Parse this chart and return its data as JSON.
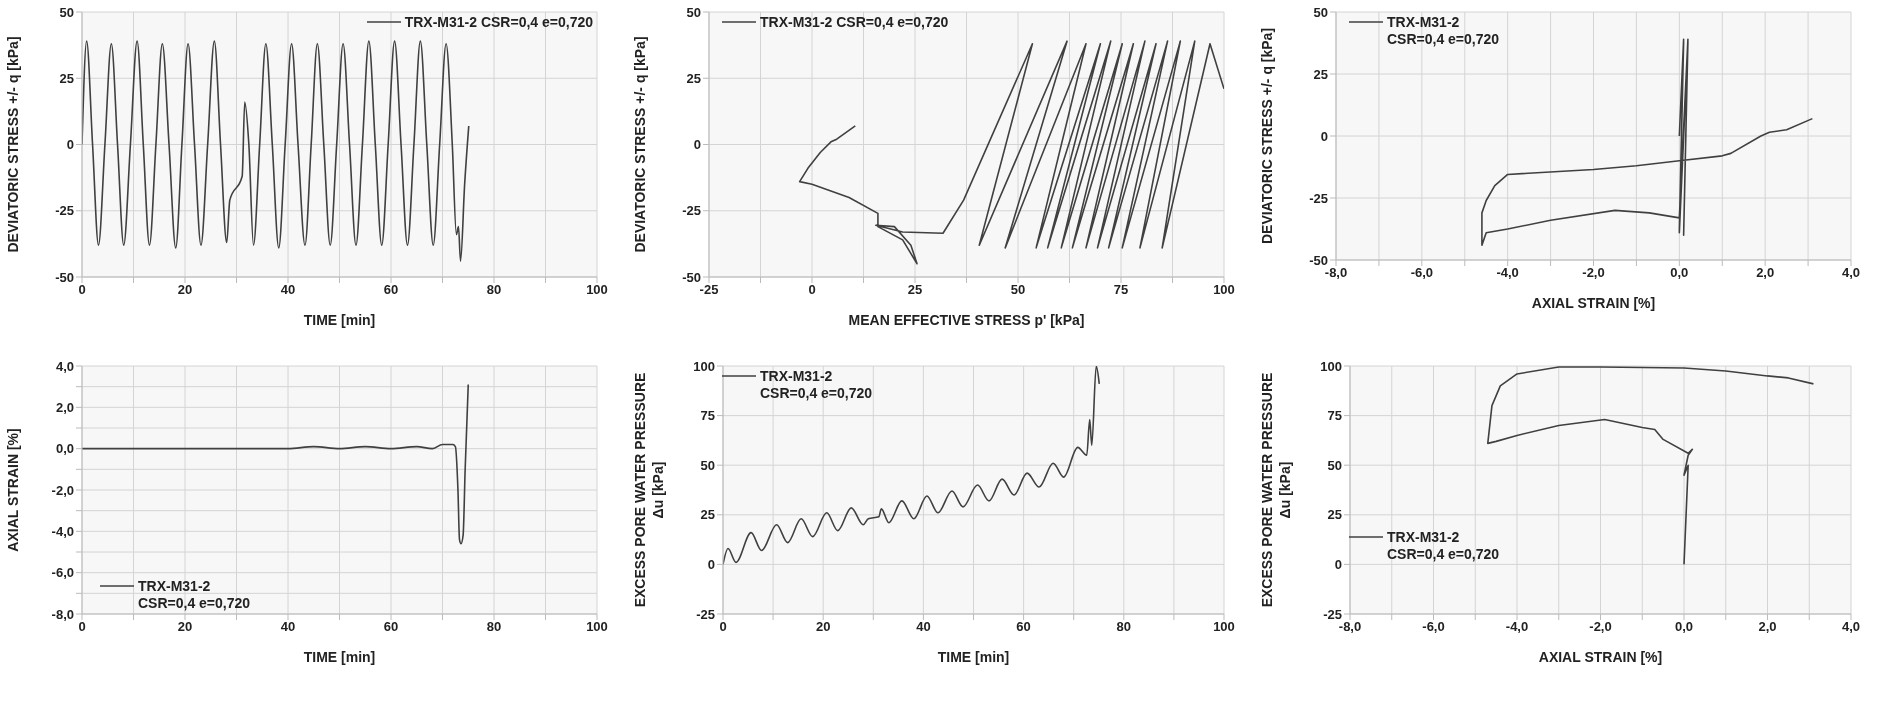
{
  "chart_data": [
    {
      "type": "line",
      "xlabel": "TIME [min]",
      "ylabel": "DEVIATORIC STRESS +/- q [kPa]",
      "xlim": [
        0,
        100
      ],
      "ylim": [
        -50,
        50
      ],
      "xticks": [
        0,
        {
          "value": 10,
          "label": null
        },
        20,
        {
          "value": 30,
          "label": null
        },
        40,
        {
          "value": 50,
          "label": null
        },
        60,
        {
          "value": 70,
          "label": null
        },
        80,
        {
          "value": 90,
          "label": null
        },
        100
      ],
      "yticks": [
        -50,
        -25,
        0,
        25,
        50
      ],
      "grid": true,
      "legend": "top right",
      "series": [
        {
          "name": "TRX-M31-2 CSR=0,4 e=0,720",
          "color": "#404040",
          "x": [
            0,
            0.9,
            2.05,
            3.2,
            4.45,
            5.7,
            6.9,
            8.1,
            9.4,
            10.7,
            11.9,
            13.1,
            14.35,
            15.6,
            16.9,
            18.2,
            19.4,
            20.6,
            21.85,
            23.1,
            24.4,
            25.7,
            26.9,
            28.1,
            28.7,
            31.1,
            31.6,
            32.4,
            33.3,
            34.5,
            35.7,
            36.95,
            38.2,
            39.45,
            40.7,
            41.95,
            43.3,
            44.5,
            45.7,
            46.95,
            48.2,
            49.45,
            50.7,
            51.95,
            53.2,
            54.45,
            55.7,
            56.95,
            58.2,
            59.45,
            60.7,
            61.95,
            63.2,
            64.45,
            65.7,
            66.95,
            68.2,
            69.45,
            70.7,
            71.9,
            72.7,
            73.1,
            73.5,
            74.3,
            75.1
          ],
          "values": [
            0,
            39,
            0,
            -38,
            0,
            38,
            0,
            -38,
            0,
            39,
            0,
            -38,
            0,
            38,
            0,
            -39,
            0,
            38,
            0,
            -38,
            0,
            39,
            0,
            -37,
            -21,
            -12,
            16,
            0,
            -38,
            0,
            38,
            0,
            -39,
            0,
            38,
            0,
            -38,
            0,
            38,
            0,
            -38,
            0,
            38,
            0,
            -38,
            0,
            39,
            0,
            -38,
            0,
            39,
            0,
            -38,
            0,
            39,
            0,
            -38,
            0,
            38,
            0,
            -34,
            -31,
            -44,
            -15,
            7
          ]
        }
      ]
    },
    {
      "type": "line",
      "xlabel": "MEAN EFFECTIVE STRESS p' [kPa]",
      "ylabel": "DEVIATORIC STRESS +/- q [kPa]",
      "xlim": [
        -25,
        100
      ],
      "ylim": [
        -50,
        50
      ],
      "xticks": [
        -25,
        {
          "value": -12.5,
          "label": null
        },
        0,
        {
          "value": 12.5,
          "label": null
        },
        25,
        {
          "value": 37.5,
          "label": null
        },
        50,
        {
          "value": 62.5,
          "label": null
        },
        75,
        {
          "value": 87.5,
          "label": null
        },
        100
      ],
      "yticks": [
        -50,
        -25,
        0,
        25,
        50
      ],
      "grid": true,
      "legend": "top left",
      "series": [
        {
          "name": "TRX-M31-2 CSR=0,4 e=0,720",
          "color": "#404040",
          "x": [
            100,
            96.6,
            85,
            92.9,
            79.6,
            89.4,
            75.3,
            86.3,
            72,
            83.5,
            69.3,
            80.8,
            66.5,
            78,
            63.2,
            75.3,
            60.5,
            72.5,
            57.2,
            70,
            54.4,
            66.5,
            46.9,
            61.9,
            40.6,
            53.5,
            36.8,
            31.8,
            22,
            15.5,
            20,
            24,
            25.5,
            22,
            16,
            16,
            9,
            0,
            -3,
            -1,
            2,
            4.6,
            6,
            10.5
          ],
          "values": [
            21,
            38,
            -39,
            39,
            -39,
            39,
            -39,
            39,
            -39,
            38,
            -39,
            39,
            -39,
            38,
            -39,
            38,
            -39,
            39,
            -39,
            38,
            -39,
            38,
            -39,
            39,
            -38,
            38,
            -21,
            -33.5,
            -33,
            -30.5,
            -31,
            -38,
            -45,
            -36,
            -31,
            -26,
            -20,
            -15,
            -14,
            -9,
            -3,
            1,
            2,
            7
          ]
        }
      ]
    },
    {
      "type": "line",
      "xlabel": "AXIAL STRAIN [%]",
      "ylabel": "DEVIATORIC STRESS +/- q [kPa]",
      "xlim": [
        -8,
        4
      ],
      "ylim": [
        -50,
        50
      ],
      "xticks": [
        {
          "value": -8,
          "label": "-8,0"
        },
        {
          "value": -7,
          "label": null
        },
        {
          "value": -6,
          "label": "-6,0"
        },
        {
          "value": -5,
          "label": null
        },
        {
          "value": -4,
          "label": "-4,0"
        },
        {
          "value": -3,
          "label": null
        },
        {
          "value": -2,
          "label": "-2,0"
        },
        {
          "value": -1,
          "label": null
        },
        {
          "value": 0,
          "label": "0,0"
        },
        {
          "value": 1,
          "label": null
        },
        {
          "value": 2,
          "label": "2,0"
        },
        {
          "value": 3,
          "label": null
        },
        {
          "value": 4,
          "label": "4,0"
        }
      ],
      "yticks": [
        -50,
        -25,
        0,
        25,
        50
      ],
      "grid": true,
      "legend": "top left",
      "series": [
        {
          "name": "TRX-M31-2\nCSR=0,4 e=0,720",
          "color": "#404040",
          "x": [
            0,
            0.1,
            0,
            0.1,
            0,
            0.2,
            0.1,
            0.2,
            0,
            -0.7,
            -1.5,
            -3,
            -4,
            -4.5,
            -4.6,
            -4.6,
            -4.5,
            -4.3,
            -4,
            -2,
            -1,
            0,
            1,
            1.2,
            1.9,
            2.1,
            2.5,
            3.1
          ],
          "values": [
            0,
            39,
            -38,
            38,
            -39,
            38,
            -40,
            39,
            -33,
            -31,
            -30,
            -34,
            -37.5,
            -39,
            -44,
            -31,
            -26,
            -20,
            -15.5,
            -13.5,
            -12,
            -10,
            -8,
            -7,
            0,
            1.5,
            2.5,
            7
          ]
        }
      ]
    },
    {
      "type": "line",
      "xlabel": "TIME [min]",
      "ylabel": "AXIAL STRAIN [%]",
      "xlim": [
        0,
        100
      ],
      "ylim": [
        -8,
        4
      ],
      "xticks": [
        0,
        {
          "value": 10,
          "label": null
        },
        20,
        {
          "value": 30,
          "label": null
        },
        40,
        {
          "value": 50,
          "label": null
        },
        60,
        {
          "value": 70,
          "label": null
        },
        80,
        {
          "value": 90,
          "label": null
        },
        100
      ],
      "yticks": [
        {
          "value": -8,
          "label": "-8,0"
        },
        {
          "value": -7,
          "label": null
        },
        {
          "value": -6,
          "label": "-6,0"
        },
        {
          "value": -5,
          "label": null
        },
        {
          "value": -4,
          "label": "-4,0"
        },
        {
          "value": -3,
          "label": null
        },
        {
          "value": -2,
          "label": "-2,0"
        },
        {
          "value": -1,
          "label": null
        },
        {
          "value": 0,
          "label": "0,0"
        },
        {
          "value": 1,
          "label": null
        },
        {
          "value": 2,
          "label": "2,0"
        },
        {
          "value": 3,
          "label": null
        },
        {
          "value": 4,
          "label": "4,0"
        }
      ],
      "grid": true,
      "legend": "bottom left",
      "series": [
        {
          "name": "TRX-M31-2\nCSR=0,4 e=0,720",
          "color": "#404040",
          "x": [
            0,
            10,
            20,
            30,
            40,
            45,
            50,
            55,
            60,
            65,
            68,
            70,
            71,
            72,
            72.5,
            73,
            73.3,
            73.6,
            74,
            74.4,
            75
          ],
          "values": [
            0,
            0,
            0,
            0,
            0,
            0.1,
            0,
            0.1,
            0,
            0.1,
            0,
            0.2,
            0.2,
            0.2,
            0.1,
            -2,
            -4.4,
            -4.6,
            -4.2,
            -1,
            3.1
          ]
        }
      ]
    },
    {
      "type": "line",
      "xlabel": "TIME [min]",
      "ylabel": "EXCESS PORE WATER PRESSURE\nΔu [kPa]",
      "xlim": [
        0,
        100
      ],
      "ylim": [
        -25,
        100
      ],
      "xticks": [
        0,
        {
          "value": 10,
          "label": null
        },
        20,
        {
          "value": 30,
          "label": null
        },
        40,
        {
          "value": 50,
          "label": null
        },
        60,
        {
          "value": 70,
          "label": null
        },
        80,
        {
          "value": 90,
          "label": null
        },
        100
      ],
      "yticks": [
        -25,
        0,
        25,
        50,
        75,
        100
      ],
      "grid": true,
      "legend": "top left",
      "series": [
        {
          "name": "TRX-M31-2\nCSR=0,4 e=0,720",
          "color": "#404040",
          "x": [
            0,
            1,
            2.6,
            5.6,
            7.7,
            10.7,
            12.9,
            15.6,
            17.9,
            20.7,
            22.9,
            25.6,
            28,
            29,
            31.1,
            31.6,
            33.1,
            35.7,
            38.1,
            40.7,
            42.9,
            45.7,
            47.9,
            50.8,
            53.1,
            55.7,
            58.1,
            60.7,
            63.1,
            65.9,
            68,
            70.8,
            72.6,
            73.2,
            73.6,
            74.5,
            75.1
          ],
          "values": [
            0,
            8,
            1,
            16,
            7,
            20,
            11,
            23,
            14,
            26,
            17,
            28.5,
            20,
            23,
            24,
            28,
            21,
            32,
            23,
            34.5,
            26,
            37,
            29,
            40,
            32,
            43,
            35,
            46,
            39,
            51,
            44,
            59,
            55,
            73,
            60,
            100,
            91
          ]
        }
      ]
    },
    {
      "type": "line",
      "xlabel": "AXIAL STRAIN [%]",
      "ylabel": "EXCESS PORE WATER PRESSURE\nΔu [kPa]",
      "xlim": [
        -8,
        4
      ],
      "ylim": [
        -25,
        100
      ],
      "xticks": [
        {
          "value": -8,
          "label": "-8,0"
        },
        {
          "value": -7,
          "label": null
        },
        {
          "value": -6,
          "label": "-6,0"
        },
        {
          "value": -5,
          "label": null
        },
        {
          "value": -4,
          "label": "-4,0"
        },
        {
          "value": -3,
          "label": null
        },
        {
          "value": -2,
          "label": "-2,0"
        },
        {
          "value": -1,
          "label": null
        },
        {
          "value": 0,
          "label": "0,0"
        },
        {
          "value": 1,
          "label": null
        },
        {
          "value": 2,
          "label": "2,0"
        },
        {
          "value": 3,
          "label": null
        },
        {
          "value": 4,
          "label": "4,0"
        }
      ],
      "yticks": [
        -25,
        0,
        25,
        50,
        75,
        100
      ],
      "grid": true,
      "legend": "left",
      "series": [
        {
          "name": "TRX-M31-2\nCSR=0,4 e=0,720",
          "color": "#404040",
          "x": [
            0,
            0.1,
            0,
            0.1,
            0.2,
            0.1,
            -0.5,
            -0.7,
            -1,
            -1.9,
            -3,
            -4,
            -4.5,
            -4.7,
            -4.6,
            -4.4,
            -4,
            -3,
            -2,
            0,
            1,
            2,
            2.5,
            3.1
          ],
          "values": [
            0,
            50,
            45,
            55,
            58,
            56,
            63,
            68,
            69,
            73,
            70,
            65,
            62,
            61,
            80,
            90,
            96,
            99.5,
            99.5,
            99,
            97.5,
            95,
            94,
            91
          ]
        }
      ]
    }
  ]
}
